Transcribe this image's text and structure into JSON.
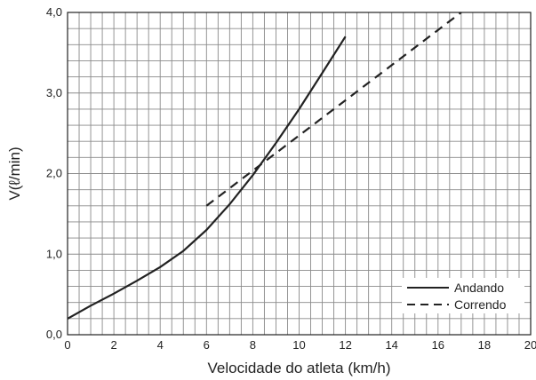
{
  "chart_data": {
    "type": "line",
    "title": "",
    "xlabel": "Velocidade do atleta (km/h)",
    "ylabel": "V(ℓ/min)",
    "xlim": [
      0,
      20
    ],
    "ylim": [
      0,
      4
    ],
    "grid": true,
    "x_ticks": [
      "0",
      "2",
      "4",
      "6",
      "8",
      "10",
      "12",
      "14",
      "16",
      "18",
      "20"
    ],
    "y_ticks": [
      "0,0",
      "1,0",
      "2,0",
      "3,0",
      "4,0"
    ],
    "legend_placement": "bottom-right",
    "series": [
      {
        "name": "Andando",
        "style": "solid",
        "color": "#222222",
        "x": [
          0,
          1,
          2,
          3,
          4,
          5,
          6,
          7,
          8,
          9,
          10,
          11,
          12
        ],
        "y": [
          0.2,
          0.36,
          0.51,
          0.67,
          0.84,
          1.04,
          1.3,
          1.62,
          1.98,
          2.38,
          2.8,
          3.25,
          3.7
        ]
      },
      {
        "name": "Correndo",
        "style": "dashed",
        "color": "#222222",
        "x": [
          6,
          17
        ],
        "y": [
          1.6,
          4.0
        ]
      }
    ]
  }
}
